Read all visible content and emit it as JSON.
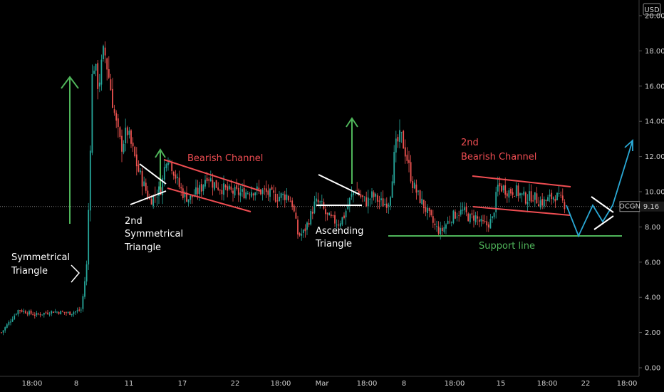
{
  "symbol": "OCGN",
  "currency": "USD",
  "last_price": "9.16",
  "chart_data": {
    "type": "candlestick",
    "y_axis": {
      "min": 0,
      "max": 20,
      "ticks": [
        "0.00",
        "2.00",
        "4.00",
        "6.00",
        "8.00",
        "10.00",
        "12.00",
        "14.00",
        "16.00",
        "18.00",
        "20.00"
      ]
    },
    "x_ticks": [
      "18:00",
      "8",
      "11",
      "17",
      "22",
      "18:00",
      "Mar",
      "18:00",
      "8",
      "18:00",
      "15",
      "18:00",
      "22",
      "18:00"
    ],
    "grid": false,
    "last_price": 9.16,
    "annotations": [
      {
        "id": "sym-tri",
        "lines": [
          "Symmetrical",
          "Triangle"
        ],
        "color": "white"
      },
      {
        "id": "sym-tri2",
        "lines": [
          "2nd",
          "Symmetrical",
          "Triangle"
        ],
        "color": "white"
      },
      {
        "id": "bear1",
        "lines": [
          "Bearish Channel"
        ],
        "color": "red"
      },
      {
        "id": "asc-tri",
        "lines": [
          "Ascending",
          "Triangle"
        ],
        "color": "white"
      },
      {
        "id": "bear2",
        "lines": [
          "2nd",
          "Bearish Channel"
        ],
        "color": "red"
      },
      {
        "id": "support",
        "lines": [
          "Support line"
        ],
        "color": "green"
      }
    ],
    "colors": {
      "up": "#26a69a",
      "down": "#ef5350",
      "annotation_red": "#ef4d52",
      "annotation_green": "#4fb55a",
      "projection": "#2aa9d6"
    },
    "price_path": [
      [
        0,
        2.0
      ],
      [
        3,
        3.3
      ],
      [
        6,
        3.0
      ],
      [
        9,
        3.2
      ],
      [
        12,
        3.1
      ],
      [
        14,
        3.3
      ],
      [
        15,
        6.0
      ],
      [
        16,
        17.6
      ],
      [
        17,
        16.0
      ],
      [
        18,
        18.1
      ],
      [
        19,
        16.2
      ],
      [
        20,
        14.0
      ],
      [
        21,
        12.5
      ],
      [
        22,
        13.5
      ],
      [
        24,
        11.2
      ],
      [
        26,
        9.5
      ],
      [
        28,
        10.2
      ],
      [
        29,
        12.2
      ],
      [
        30,
        11.4
      ],
      [
        31,
        10.4
      ],
      [
        32,
        9.8
      ],
      [
        33,
        9.6
      ],
      [
        34,
        9.9
      ],
      [
        35,
        10.2
      ],
      [
        36,
        11.0
      ],
      [
        37,
        10.5
      ],
      [
        38,
        10.3
      ],
      [
        40,
        10.0
      ],
      [
        42,
        9.9
      ],
      [
        44,
        10.1
      ],
      [
        46,
        10.0
      ],
      [
        48,
        9.7
      ],
      [
        50,
        9.8
      ],
      [
        51,
        9.3
      ],
      [
        52,
        7.5
      ],
      [
        53,
        7.7
      ],
      [
        54,
        8.5
      ],
      [
        55,
        9.4
      ],
      [
        56,
        9.3
      ],
      [
        57,
        8.6
      ],
      [
        58,
        8.4
      ],
      [
        59,
        8.2
      ],
      [
        60,
        8.6
      ],
      [
        61,
        9.5
      ],
      [
        62,
        10.2
      ],
      [
        63,
        9.7
      ],
      [
        64,
        9.4
      ],
      [
        65,
        9.8
      ],
      [
        66,
        9.5
      ],
      [
        67,
        9.3
      ],
      [
        68,
        9.5
      ],
      [
        69,
        12.5
      ],
      [
        70,
        13.2
      ],
      [
        71,
        12.0
      ],
      [
        72,
        10.5
      ],
      [
        73,
        9.8
      ],
      [
        74,
        9.2
      ],
      [
        75,
        8.6
      ],
      [
        76,
        8.0
      ],
      [
        77,
        7.7
      ],
      [
        78,
        8.2
      ],
      [
        79,
        8.6
      ],
      [
        80,
        8.8
      ],
      [
        81,
        8.9
      ],
      [
        82,
        8.5
      ],
      [
        83,
        8.6
      ],
      [
        84,
        8.2
      ],
      [
        85,
        8.1
      ],
      [
        86,
        8.4
      ],
      [
        87,
        10.3
      ],
      [
        88,
        10.2
      ],
      [
        89,
        10.0
      ],
      [
        90,
        10.1
      ],
      [
        91,
        9.8
      ],
      [
        92,
        9.6
      ],
      [
        93,
        9.8
      ],
      [
        94,
        9.5
      ],
      [
        95,
        9.4
      ],
      [
        96,
        9.6
      ],
      [
        97,
        9.8
      ],
      [
        98,
        9.5
      ],
      [
        99,
        9.2
      ]
    ]
  }
}
